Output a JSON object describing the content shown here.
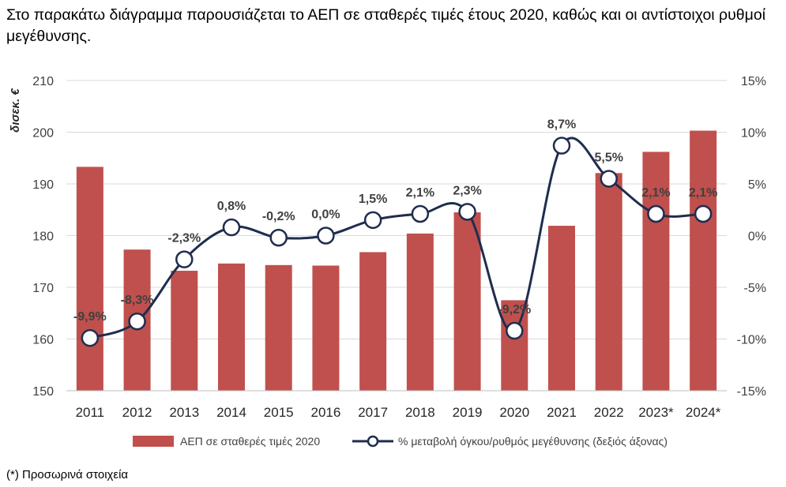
{
  "intro": "Στο παρακάτω διάγραμμα παρουσιάζεται το ΑΕΠ σε σταθερές τιμές έτους 2020, καθώς και οι αντίστοιχοι ρυθμοί μεγέθυνσης.",
  "footnote": "(*) Προσωρινά στοιχεία",
  "chart_data": {
    "type": "bar",
    "categories": [
      "2011",
      "2012",
      "2013",
      "2014",
      "2015",
      "2016",
      "2017",
      "2018",
      "2019",
      "2020",
      "2021",
      "2022",
      "2023*",
      "2024*"
    ],
    "y_label": "δισεκ. €",
    "ylim": [
      150,
      210
    ],
    "y_ticks": [
      150,
      160,
      170,
      180,
      190,
      200,
      210
    ],
    "y2lim": [
      -15,
      15
    ],
    "y2_ticks": [
      -15,
      -10,
      -5,
      0,
      5,
      10,
      15
    ],
    "y2_tick_labels": [
      "-15%",
      "-10%",
      "-5%",
      "0%",
      "5%",
      "10%",
      "15%"
    ],
    "grid": true,
    "legend_position": "bottom",
    "series": [
      {
        "name": "ΑΕΠ σε σταθερές τιμές 2020",
        "type": "bar",
        "axis": "left",
        "color": "#c0504d",
        "values": [
          193.3,
          177.3,
          173.2,
          174.6,
          174.3,
          174.2,
          176.8,
          180.4,
          184.5,
          167.5,
          181.9,
          192.1,
          196.2,
          200.3
        ]
      },
      {
        "name": "% μεταβολή όγκου/ρυθμός μεγέθυνσης (δεξιός άξονας)",
        "type": "line",
        "axis": "right",
        "color": "#1f2d4e",
        "values": [
          -9.9,
          -8.3,
          -2.3,
          0.8,
          -0.2,
          0.0,
          1.5,
          2.1,
          2.3,
          -9.2,
          8.7,
          5.5,
          2.1,
          2.1
        ],
        "labels": [
          "-9,9%",
          "-8,3%",
          "-2,3%",
          "0,8%",
          "-0,2%",
          "0,0%",
          "1,5%",
          "2,1%",
          "2,3%",
          "-9,2%",
          "8,7%",
          "5,5%",
          "2,1%",
          "2,1%"
        ]
      }
    ]
  }
}
